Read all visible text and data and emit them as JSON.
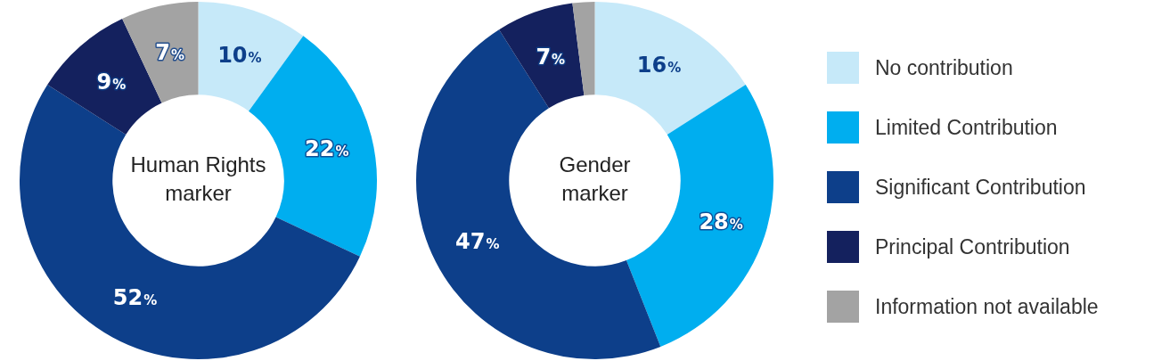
{
  "chart_data": [
    {
      "type": "donut",
      "title": "Human Rights marker",
      "categories": [
        null,
        null,
        null,
        null,
        null
      ],
      "values": [
        10,
        22,
        52,
        9,
        7
      ],
      "colors": [
        "#c6e9f9",
        "#00aeef",
        "#0d3f8a",
        "#14215e",
        "#a3a3a3"
      ],
      "value_labels": [
        "10%",
        "22%",
        "52%",
        "9%",
        "7%"
      ],
      "legend": false
    },
    {
      "type": "donut",
      "title": "Gender marker",
      "categories": [
        "No contribution",
        "Limited Contribution",
        "Significant Contribution",
        "Principal Contribution",
        "Information not available"
      ],
      "values": [
        16,
        28,
        47,
        7,
        2
      ],
      "colors": [
        "#c6e9f9",
        "#00aeef",
        "#0d3f8a",
        "#14215e",
        "#a3a3a3"
      ],
      "value_labels": [
        "16%",
        "28%",
        "47%",
        "7%",
        null
      ],
      "legend": "right"
    }
  ]
}
